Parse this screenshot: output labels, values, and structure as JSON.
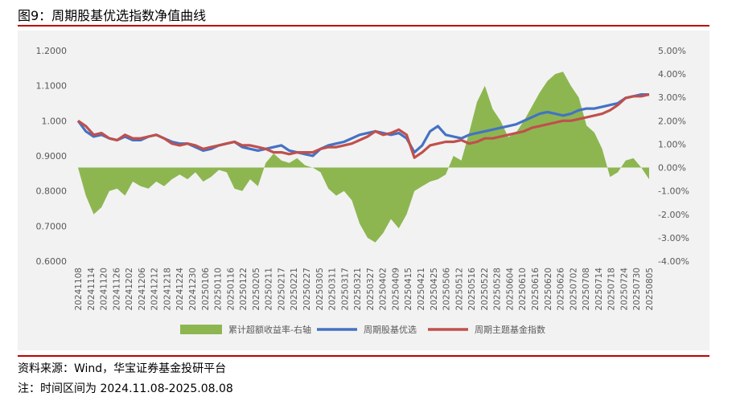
{
  "title": "图9：周期股基优选指数净值曲线",
  "source": "资料来源：Wind，华宝证券基金投研平台",
  "note": "注：时间区间为 2024.11.08-2025.08.08",
  "colors": {
    "area": "#8db651",
    "fund": "#4472c4",
    "index": "#c0504d",
    "rule": "#c00000"
  },
  "chart_data": {
    "type": "line",
    "left_axis": {
      "min": 0.6,
      "max": 1.2,
      "ticks": [
        "0.6000",
        "0.7000",
        "0.8000",
        "0.9000",
        "1.000",
        "1.1000",
        "1.2000"
      ]
    },
    "right_axis": {
      "min": -4,
      "max": 5,
      "ticks": [
        "-4.00%",
        "-3.00%",
        "-2.00%",
        "-1.00%",
        "0.00%",
        "1.00%",
        "2.00%",
        "3.00%",
        "4.00%",
        "5.00%"
      ]
    },
    "x_ticks": [
      "20241108",
      "20241114",
      "20241120",
      "20241126",
      "20241202",
      "20241206",
      "20241212",
      "20241218",
      "20241224",
      "20241230",
      "20250106",
      "20250110",
      "20250116",
      "20250122",
      "20250205",
      "20250211",
      "20250217",
      "20250221",
      "20250227",
      "20250305",
      "20250311",
      "20250317",
      "20250321",
      "20250327",
      "20250402",
      "20250409",
      "20250415",
      "20250421",
      "20250425",
      "20250506",
      "20250512",
      "20250516",
      "20250522",
      "20250528",
      "20250604",
      "20250610",
      "20250616",
      "20250620",
      "20250626",
      "20250702",
      "20250708",
      "20250714",
      "20250718",
      "20250724",
      "20250730",
      "20250805"
    ],
    "legend": [
      "累计超额收益率-右轴",
      "周期股基优选",
      "周期主题基金指数"
    ],
    "series": [
      {
        "name": "累计超额收益率-右轴",
        "axis": "right",
        "kind": "area",
        "values": [
          0.0,
          -1.2,
          -2.0,
          -1.7,
          -1.0,
          -0.9,
          -1.2,
          -0.6,
          -0.8,
          -0.9,
          -0.6,
          -0.8,
          -0.5,
          -0.3,
          -0.5,
          -0.2,
          -0.6,
          -0.4,
          -0.1,
          -0.2,
          -0.9,
          -1.0,
          -0.5,
          -0.8,
          0.2,
          0.6,
          0.3,
          0.2,
          0.4,
          0.1,
          0.0,
          -0.2,
          -0.9,
          -1.2,
          -1.0,
          -1.4,
          -2.4,
          -3.0,
          -3.2,
          -2.8,
          -2.2,
          -2.6,
          -2.0,
          -1.0,
          -0.8,
          -0.6,
          -0.5,
          -0.3,
          0.5,
          0.3,
          1.5,
          2.8,
          3.5,
          2.5,
          2.0,
          1.3,
          1.5,
          2.0,
          2.6,
          3.2,
          3.7,
          4.0,
          4.1,
          3.5,
          3.0,
          1.8,
          1.5,
          0.8,
          -0.4,
          -0.2,
          0.3,
          0.4,
          0.0,
          -0.5
        ]
      },
      {
        "name": "周期股基优选",
        "axis": "left",
        "kind": "line",
        "values": [
          1.0,
          0.97,
          0.955,
          0.96,
          0.95,
          0.945,
          0.955,
          0.945,
          0.945,
          0.955,
          0.96,
          0.95,
          0.94,
          0.935,
          0.935,
          0.925,
          0.915,
          0.92,
          0.93,
          0.935,
          0.94,
          0.925,
          0.92,
          0.915,
          0.92,
          0.925,
          0.93,
          0.915,
          0.91,
          0.905,
          0.9,
          0.92,
          0.93,
          0.935,
          0.94,
          0.95,
          0.96,
          0.965,
          0.97,
          0.965,
          0.96,
          0.965,
          0.95,
          0.91,
          0.93,
          0.97,
          0.985,
          0.96,
          0.955,
          0.95,
          0.96,
          0.965,
          0.97,
          0.975,
          0.98,
          0.985,
          0.99,
          1.0,
          1.01,
          1.02,
          1.025,
          1.02,
          1.015,
          1.02,
          1.03,
          1.035,
          1.035,
          1.04,
          1.045,
          1.05,
          1.065,
          1.07,
          1.075,
          1.075
        ]
      },
      {
        "name": "周期主题基金指数",
        "axis": "left",
        "kind": "line",
        "values": [
          1.0,
          0.985,
          0.96,
          0.965,
          0.95,
          0.945,
          0.96,
          0.95,
          0.95,
          0.955,
          0.96,
          0.95,
          0.935,
          0.93,
          0.935,
          0.93,
          0.92,
          0.925,
          0.93,
          0.935,
          0.94,
          0.93,
          0.93,
          0.925,
          0.92,
          0.91,
          0.91,
          0.905,
          0.91,
          0.91,
          0.91,
          0.92,
          0.925,
          0.925,
          0.93,
          0.935,
          0.945,
          0.955,
          0.97,
          0.96,
          0.965,
          0.975,
          0.96,
          0.895,
          0.91,
          0.93,
          0.935,
          0.94,
          0.94,
          0.945,
          0.935,
          0.94,
          0.95,
          0.95,
          0.955,
          0.96,
          0.965,
          0.97,
          0.98,
          0.985,
          0.99,
          0.995,
          1.0,
          1.0,
          1.005,
          1.01,
          1.015,
          1.02,
          1.03,
          1.045,
          1.065,
          1.07,
          1.07,
          1.075
        ]
      }
    ]
  }
}
